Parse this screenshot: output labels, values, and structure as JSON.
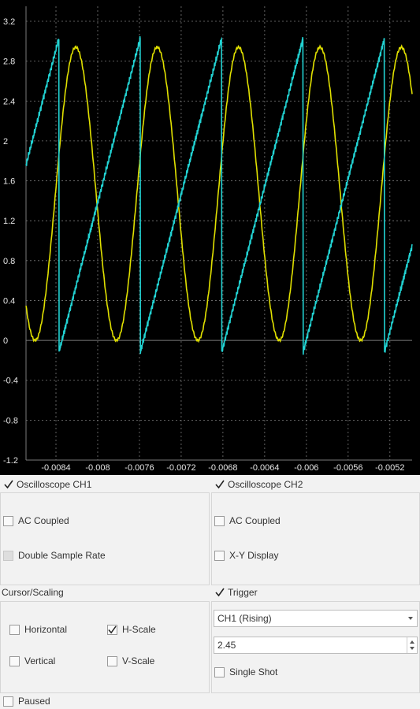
{
  "chart_data": {
    "type": "line",
    "xlabel": "",
    "ylabel": "",
    "x_ticks": [
      "-0.0084",
      "-0.008",
      "-0.0076",
      "-0.0072",
      "-0.0068",
      "-0.0064",
      "-0.006",
      "-0.0056",
      "-0.0052"
    ],
    "y_ticks": [
      "3.2",
      "2.8",
      "2.4",
      "2",
      "1.6",
      "1.2",
      "0.8",
      "0.4",
      "0",
      "-0.4",
      "-0.8",
      "-1.2"
    ],
    "xlim": [
      -0.008687,
      -0.004987
    ],
    "ylim": [
      -1.2,
      3.35
    ],
    "grid": true,
    "series": [
      {
        "color": "#e0e000",
        "shape": "sine",
        "offset": 1.47,
        "amplitude": 1.47,
        "period": 0.00078,
        "peaks_at_x": [
          -0.00821,
          -0.00743,
          -0.00665,
          -0.00587,
          -0.00509
        ]
      },
      {
        "color": "#22d3d3",
        "shape": "sawtooth",
        "min": -0.12,
        "max": 3.03,
        "period": 0.00078,
        "drops_at_x": [
          -0.008372,
          -0.007592,
          -0.006812,
          -0.006032,
          -0.005252
        ]
      }
    ]
  },
  "ch1": {
    "title": "Oscilloscope CH1",
    "enabled": true,
    "ac_coupled": "AC Coupled",
    "double_rate": "Double Sample Rate"
  },
  "ch2": {
    "title": "Oscilloscope CH2",
    "enabled": true,
    "ac_coupled": "AC Coupled",
    "xy": "X-Y Display"
  },
  "cursor": {
    "title": "Cursor/Scaling",
    "horizontal": "Horizontal",
    "vertical": "Vertical",
    "hscale": "H-Scale",
    "vscale": "V-Scale"
  },
  "trigger": {
    "title": "Trigger",
    "enabled": true,
    "source": "CH1 (Rising)",
    "level": "2.45",
    "single": "Single Shot"
  },
  "paused": "Paused",
  "colors": {
    "ch1": "#e0e000",
    "ch2": "#22d3d3",
    "grid": "#7a7a7a"
  }
}
